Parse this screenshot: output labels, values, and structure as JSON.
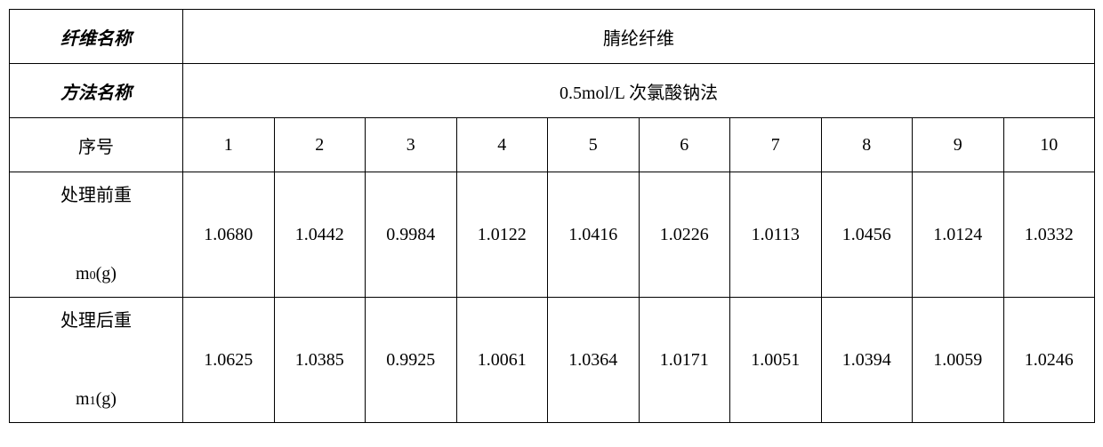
{
  "table": {
    "fiber_name_label": "纤维名称",
    "fiber_name_value": "腈纶纤维",
    "method_name_label": "方法名称",
    "method_name_value": "0.5mol/L 次氯酸钠法",
    "seq_label": "序号",
    "seq_values": [
      "1",
      "2",
      "3",
      "4",
      "5",
      "6",
      "7",
      "8",
      "9",
      "10"
    ],
    "before_label_line1": "处理前重",
    "before_label_line2_prefix": "m",
    "before_label_line2_sub": "0",
    "before_label_line2_suffix": "(g)",
    "before_values": [
      "1.0680",
      "1.0442",
      "0.9984",
      "1.0122",
      "1.0416",
      "1.0226",
      "1.0113",
      "1.0456",
      "1.0124",
      "1.0332"
    ],
    "after_label_line1": "处理后重",
    "after_label_line2_prefix": "m",
    "after_label_line2_sub": "1",
    "after_label_line2_suffix": "(g)",
    "after_values": [
      "1.0625",
      "1.0385",
      "0.9925",
      "1.0061",
      "1.0364",
      "1.0171",
      "1.0051",
      "1.0394",
      "1.0059",
      "1.0246"
    ],
    "colors": {
      "border": "#000000",
      "background": "#ffffff",
      "text": "#000000"
    },
    "font_sizes": {
      "header": 20,
      "data": 20,
      "subscript": 14
    }
  }
}
